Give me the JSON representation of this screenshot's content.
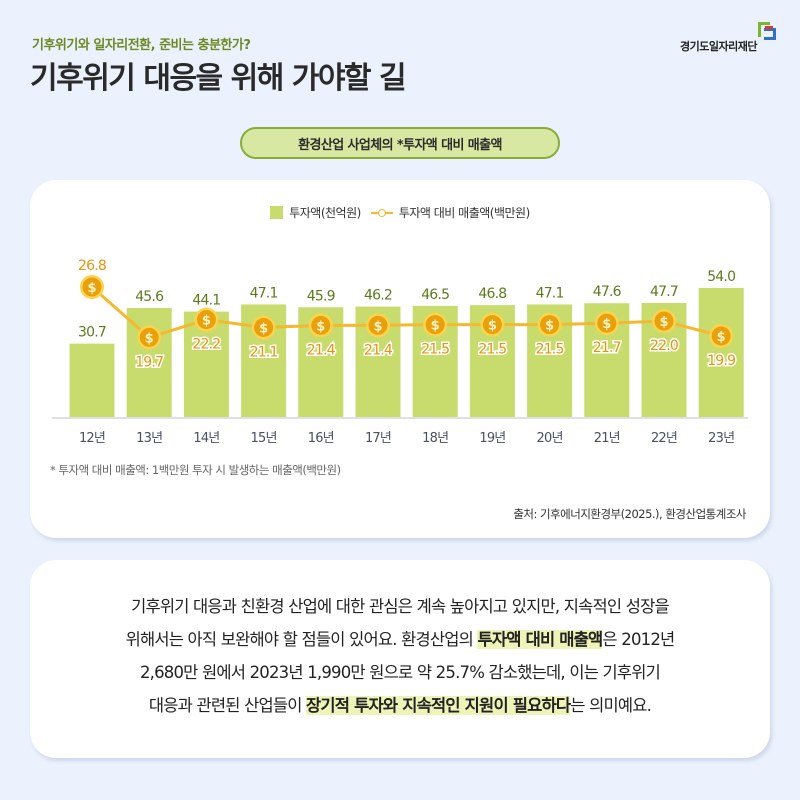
{
  "header": {
    "subtitle": "기후위기와 일자리전환, 준비는 충분한가?",
    "title": "기후위기 대응을 위해 가야할 길",
    "logo_text": "경기도일자리재단"
  },
  "chart_section": {
    "pill_title": "환경산업 사업체의 *투자액 대비 매출액",
    "footnote": "* 투자액 대비 매출액: 1백만원 투자 시 발생하는 매출액(백만원)",
    "source": "출처: 기후에너지환경부(2025.), 환경산업통계조사"
  },
  "chart_data": {
    "type": "bar",
    "title": "환경산업 사업체의 *투자액 대비 매출액",
    "categories": [
      "12년",
      "13년",
      "14년",
      "15년",
      "16년",
      "17년",
      "18년",
      "19년",
      "20년",
      "21년",
      "22년",
      "23년"
    ],
    "series": [
      {
        "name": "투자액(천억원)",
        "type": "bar",
        "color": "#c8dc6e",
        "values": [
          30.7,
          45.6,
          44.1,
          47.1,
          45.9,
          46.2,
          46.5,
          46.8,
          47.1,
          47.6,
          47.7,
          54.0
        ]
      },
      {
        "name": "투자액 대비 매출액(백만원)",
        "type": "line",
        "color": "#f5b82e",
        "values": [
          26.8,
          19.7,
          22.2,
          21.1,
          21.4,
          21.4,
          21.5,
          21.5,
          21.5,
          21.7,
          22.0,
          19.9
        ]
      }
    ],
    "legend": [
      "투자액(천억원)",
      "투자액 대비 매출액(백만원)"
    ],
    "legend_position": "top",
    "xlabel": "",
    "ylabel": "",
    "grid": false
  },
  "colors": {
    "bar": "#c8dc6e",
    "bar_label": "#5e7a1e",
    "line": "#f5b82e",
    "coin": "#e8a10c",
    "line_label": "#e8940c",
    "highlight": "#eef3b8"
  },
  "summary": {
    "line1": "기후위기 대응과 친환경 산업에 대한 관심은 계속 높아지고 있지만, 지속적인 성장을",
    "line2_pre": "위해서는 아직 보완해야 할 점들이 있어요. 환경산업의 ",
    "line2_hl": "투자액 대비 매출액",
    "line2_post": "은 2012년",
    "line3": "2,680만 원에서 2023년 1,990만 원으로 약 25.7% 감소했는데, 이는 기후위기",
    "line4_pre": "대응과 관련된 산업들이 ",
    "line4_hl": "장기적 투자와 지속적인 지원이 필요하다",
    "line4_post": "는 의미예요."
  }
}
